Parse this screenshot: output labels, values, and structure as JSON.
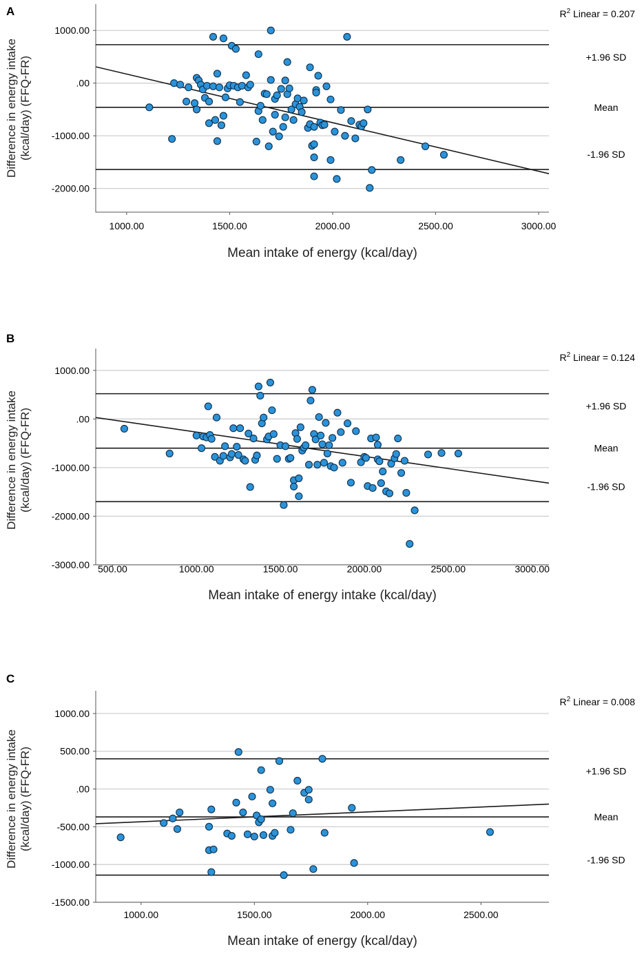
{
  "chart_data": [
    {
      "type": "scatter",
      "panel_label": "A",
      "r2_text": "R",
      "r2_sup": "2",
      "r2_rest": " Linear = 0.207",
      "xlabel": "Mean intake of energy (kcal/day)",
      "ylabel_line1": "Difference in energy intake",
      "ylabel_line2": "(kcal/day) (FFQ-FR)",
      "xlim": [
        850,
        3050
      ],
      "ylim": [
        -2450,
        1500
      ],
      "xticks": [
        1000,
        1500,
        2000,
        2500,
        3000
      ],
      "xtick_labels": [
        "1000.00",
        "1500.00",
        "2000.00",
        "2500.00",
        "3000.00"
      ],
      "yticks": [
        1000,
        0,
        -1000,
        -2000
      ],
      "ytick_labels": [
        "1000.00",
        ".00",
        "-1000.00",
        "-2000.00"
      ],
      "hlines": [
        {
          "name": "+1.96 SD",
          "value": 730
        },
        {
          "name": "Mean",
          "value": -460
        },
        {
          "name": "-1.96 SD",
          "value": -1640
        }
      ],
      "fit_line": {
        "x": [
          850,
          3050
        ],
        "y": [
          310,
          -1720
        ]
      },
      "points": [
        [
          1110,
          -460
        ],
        [
          1220,
          -1060
        ],
        [
          1230,
          0
        ],
        [
          1260,
          -30
        ],
        [
          1290,
          -350
        ],
        [
          1300,
          -80
        ],
        [
          1330,
          -380
        ],
        [
          1340,
          -500
        ],
        [
          1340,
          100
        ],
        [
          1350,
          50
        ],
        [
          1360,
          -30
        ],
        [
          1370,
          -120
        ],
        [
          1380,
          -280
        ],
        [
          1390,
          -50
        ],
        [
          1400,
          -760
        ],
        [
          1400,
          -350
        ],
        [
          1420,
          880
        ],
        [
          1420,
          -60
        ],
        [
          1430,
          -700
        ],
        [
          1440,
          -1100
        ],
        [
          1440,
          180
        ],
        [
          1450,
          -80
        ],
        [
          1460,
          -800
        ],
        [
          1470,
          -620
        ],
        [
          1470,
          850
        ],
        [
          1480,
          -270
        ],
        [
          1490,
          -100
        ],
        [
          1500,
          -40
        ],
        [
          1510,
          710
        ],
        [
          1520,
          -50
        ],
        [
          1530,
          650
        ],
        [
          1540,
          -80
        ],
        [
          1550,
          -360
        ],
        [
          1560,
          -50
        ],
        [
          1580,
          150
        ],
        [
          1590,
          -80
        ],
        [
          1600,
          -30
        ],
        [
          1630,
          -1110
        ],
        [
          1640,
          550
        ],
        [
          1640,
          -530
        ],
        [
          1650,
          -430
        ],
        [
          1660,
          -700
        ],
        [
          1670,
          -200
        ],
        [
          1680,
          -210
        ],
        [
          1690,
          -1200
        ],
        [
          1700,
          1000
        ],
        [
          1700,
          60
        ],
        [
          1710,
          -920
        ],
        [
          1720,
          -600
        ],
        [
          1720,
          -300
        ],
        [
          1730,
          -230
        ],
        [
          1740,
          -1010
        ],
        [
          1750,
          -110
        ],
        [
          1760,
          -830
        ],
        [
          1770,
          50
        ],
        [
          1770,
          -650
        ],
        [
          1780,
          -210
        ],
        [
          1780,
          400
        ],
        [
          1790,
          -100
        ],
        [
          1800,
          -500
        ],
        [
          1810,
          -700
        ],
        [
          1820,
          -400
        ],
        [
          1830,
          -290
        ],
        [
          1840,
          -450
        ],
        [
          1850,
          -550
        ],
        [
          1860,
          -330
        ],
        [
          1880,
          -850
        ],
        [
          1890,
          300
        ],
        [
          1890,
          -780
        ],
        [
          1900,
          -1190
        ],
        [
          1910,
          -1160
        ],
        [
          1910,
          -830
        ],
        [
          1910,
          -1410
        ],
        [
          1910,
          -1770
        ],
        [
          1920,
          -130
        ],
        [
          1920,
          -180
        ],
        [
          1930,
          140
        ],
        [
          1940,
          -750
        ],
        [
          1950,
          -800
        ],
        [
          1960,
          -790
        ],
        [
          1970,
          -60
        ],
        [
          1990,
          -1460
        ],
        [
          1990,
          -310
        ],
        [
          2010,
          -920
        ],
        [
          2020,
          -1820
        ],
        [
          2040,
          -510
        ],
        [
          2060,
          -1000
        ],
        [
          2070,
          880
        ],
        [
          2090,
          -720
        ],
        [
          2110,
          -1050
        ],
        [
          2130,
          -790
        ],
        [
          2140,
          -820
        ],
        [
          2150,
          -760
        ],
        [
          2170,
          -500
        ],
        [
          2180,
          -1990
        ],
        [
          2190,
          -1650
        ],
        [
          2330,
          -1460
        ],
        [
          2450,
          -1200
        ],
        [
          2540,
          -1360
        ]
      ]
    },
    {
      "type": "scatter",
      "panel_label": "B",
      "r2_text": "R",
      "r2_sup": "2",
      "r2_rest": " Linear = 0.124",
      "xlabel": "Mean intake of energy intake (kcal/day)",
      "ylabel_line1": "Difference in energy intake",
      "ylabel_line2": "(kcal/day) (FFQ-FR)",
      "xlim": [
        400,
        3100
      ],
      "ylim": [
        -3000,
        1450
      ],
      "xticks": [
        500,
        1000,
        1500,
        2000,
        2500,
        3000
      ],
      "xtick_labels": [
        "500.00",
        "1000.00",
        "1500.00",
        "2000.00",
        "2500.00",
        "3000.00"
      ],
      "yticks": [
        1000,
        0,
        -1000,
        -2000,
        -3000
      ],
      "ytick_labels": [
        "1000.00",
        ".00",
        "-1000.00",
        "-2000.00",
        "-3000.00"
      ],
      "hlines": [
        {
          "name": "+1.96 SD",
          "value": 520
        },
        {
          "name": "Mean",
          "value": -600
        },
        {
          "name": "-1.96 SD",
          "value": -1700
        }
      ],
      "fit_line": {
        "x": [
          400,
          3100
        ],
        "y": [
          30,
          -1320
        ]
      },
      "points": [
        [
          570,
          -200
        ],
        [
          840,
          -710
        ],
        [
          1000,
          -340
        ],
        [
          1030,
          -600
        ],
        [
          1040,
          -360
        ],
        [
          1060,
          -380
        ],
        [
          1070,
          260
        ],
        [
          1080,
          -330
        ],
        [
          1090,
          -410
        ],
        [
          1110,
          -780
        ],
        [
          1120,
          30
        ],
        [
          1140,
          -860
        ],
        [
          1160,
          -760
        ],
        [
          1170,
          -560
        ],
        [
          1200,
          -790
        ],
        [
          1210,
          -720
        ],
        [
          1220,
          -190
        ],
        [
          1240,
          -570
        ],
        [
          1250,
          -740
        ],
        [
          1260,
          -190
        ],
        [
          1280,
          -830
        ],
        [
          1290,
          -860
        ],
        [
          1310,
          -300
        ],
        [
          1320,
          -1400
        ],
        [
          1340,
          -400
        ],
        [
          1350,
          -840
        ],
        [
          1360,
          -750
        ],
        [
          1370,
          670
        ],
        [
          1380,
          480
        ],
        [
          1390,
          -90
        ],
        [
          1400,
          30
        ],
        [
          1420,
          -420
        ],
        [
          1430,
          -360
        ],
        [
          1440,
          750
        ],
        [
          1450,
          180
        ],
        [
          1460,
          -310
        ],
        [
          1480,
          -820
        ],
        [
          1500,
          -540
        ],
        [
          1520,
          -1770
        ],
        [
          1530,
          -560
        ],
        [
          1550,
          -820
        ],
        [
          1560,
          -800
        ],
        [
          1580,
          -1260
        ],
        [
          1580,
          -1390
        ],
        [
          1590,
          -290
        ],
        [
          1600,
          -410
        ],
        [
          1610,
          -1220
        ],
        [
          1610,
          -1590
        ],
        [
          1620,
          -170
        ],
        [
          1630,
          -650
        ],
        [
          1640,
          -590
        ],
        [
          1650,
          -540
        ],
        [
          1670,
          -940
        ],
        [
          1680,
          380
        ],
        [
          1690,
          600
        ],
        [
          1700,
          -310
        ],
        [
          1710,
          -420
        ],
        [
          1720,
          -940
        ],
        [
          1730,
          40
        ],
        [
          1740,
          -340
        ],
        [
          1750,
          -520
        ],
        [
          1760,
          -900
        ],
        [
          1770,
          -80
        ],
        [
          1780,
          -710
        ],
        [
          1790,
          -540
        ],
        [
          1800,
          -970
        ],
        [
          1810,
          -390
        ],
        [
          1820,
          -1000
        ],
        [
          1840,
          130
        ],
        [
          1860,
          -270
        ],
        [
          1870,
          -900
        ],
        [
          1900,
          -90
        ],
        [
          1920,
          -1310
        ],
        [
          1950,
          -250
        ],
        [
          1980,
          -890
        ],
        [
          2000,
          -780
        ],
        [
          2010,
          -800
        ],
        [
          2020,
          -1380
        ],
        [
          2040,
          -400
        ],
        [
          2050,
          -1420
        ],
        [
          2070,
          -380
        ],
        [
          2080,
          -830
        ],
        [
          2080,
          -530
        ],
        [
          2090,
          -870
        ],
        [
          2100,
          -1320
        ],
        [
          2110,
          -1080
        ],
        [
          2130,
          -1490
        ],
        [
          2150,
          -1530
        ],
        [
          2160,
          -920
        ],
        [
          2180,
          -810
        ],
        [
          2190,
          -720
        ],
        [
          2200,
          -400
        ],
        [
          2220,
          -1110
        ],
        [
          2240,
          -860
        ],
        [
          2250,
          -1520
        ],
        [
          2270,
          -2570
        ],
        [
          2300,
          -1880
        ],
        [
          2380,
          -730
        ],
        [
          2460,
          -700
        ],
        [
          2560,
          -710
        ]
      ]
    },
    {
      "type": "scatter",
      "panel_label": "C",
      "r2_text": "R",
      "r2_sup": "2",
      "r2_rest": " Linear = 0.008",
      "xlabel": "Mean intake of energy (kcal/day)",
      "ylabel_line1": "Difference in energy intake",
      "ylabel_line2": "(kcal/day) (FFQ-FR)",
      "xlim": [
        800,
        2800
      ],
      "ylim": [
        -1500,
        1300
      ],
      "xticks": [
        1000,
        1500,
        2000,
        2500
      ],
      "xtick_labels": [
        "1000.00",
        "1500.00",
        "2000.00",
        "2500.00"
      ],
      "yticks": [
        1000,
        500,
        0,
        -500,
        -1000,
        -1500
      ],
      "ytick_labels": [
        "1000.00",
        "500.00",
        ".00",
        "-500.00",
        "-1000.00",
        "-1500.00"
      ],
      "hlines": [
        {
          "name": "+1.96 SD",
          "value": 400
        },
        {
          "name": "Mean",
          "value": -370
        },
        {
          "name": "-1.96 SD",
          "value": -1140
        }
      ],
      "fit_line": {
        "x": [
          800,
          2800
        ],
        "y": [
          -460,
          -200
        ]
      },
      "points": [
        [
          910,
          -640
        ],
        [
          1100,
          -450
        ],
        [
          1140,
          -390
        ],
        [
          1160,
          -530
        ],
        [
          1170,
          -310
        ],
        [
          1300,
          -500
        ],
        [
          1300,
          -810
        ],
        [
          1310,
          -270
        ],
        [
          1310,
          -1100
        ],
        [
          1320,
          -800
        ],
        [
          1380,
          -590
        ],
        [
          1400,
          -620
        ],
        [
          1420,
          -180
        ],
        [
          1430,
          490
        ],
        [
          1450,
          -310
        ],
        [
          1470,
          -600
        ],
        [
          1490,
          -100
        ],
        [
          1500,
          -630
        ],
        [
          1510,
          -350
        ],
        [
          1520,
          -440
        ],
        [
          1530,
          -400
        ],
        [
          1530,
          250
        ],
        [
          1540,
          -610
        ],
        [
          1570,
          -10
        ],
        [
          1580,
          -190
        ],
        [
          1580,
          -620
        ],
        [
          1590,
          -580
        ],
        [
          1610,
          370
        ],
        [
          1630,
          -1140
        ],
        [
          1660,
          -540
        ],
        [
          1670,
          -320
        ],
        [
          1690,
          110
        ],
        [
          1720,
          -50
        ],
        [
          1740,
          -140
        ],
        [
          1740,
          -10
        ],
        [
          1760,
          -1060
        ],
        [
          1800,
          400
        ],
        [
          1810,
          -580
        ],
        [
          1930,
          -250
        ],
        [
          1940,
          -980
        ],
        [
          2540,
          -570
        ]
      ]
    }
  ]
}
